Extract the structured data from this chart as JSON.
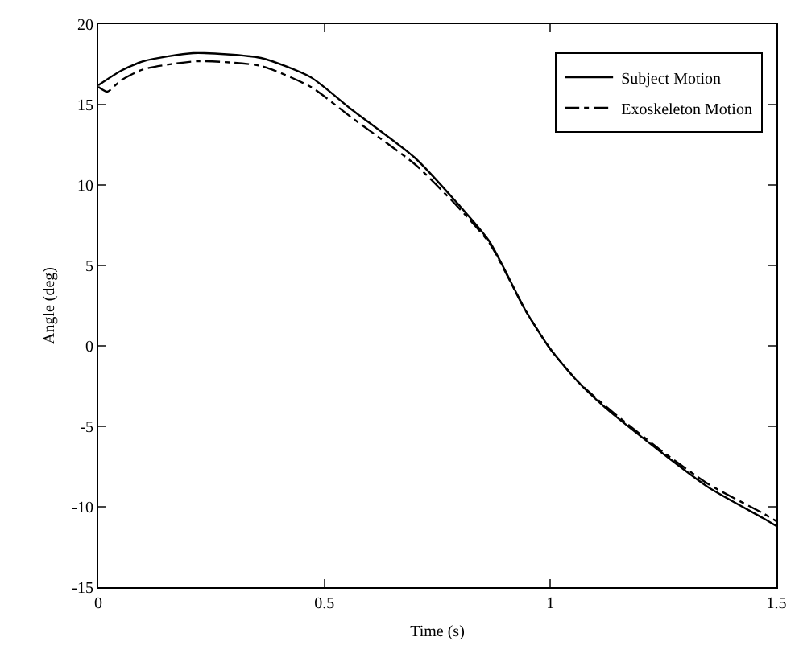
{
  "chart_data": {
    "type": "line",
    "xlabel": "Time (s)",
    "ylabel": "Angle (deg)",
    "xlim": [
      0,
      1.5
    ],
    "xticks": [
      0,
      0.5,
      1,
      1.5
    ],
    "ylim": [
      -15,
      20
    ],
    "yticks": [
      -15,
      -10,
      -5,
      0,
      5,
      10,
      15,
      20
    ],
    "grid": false,
    "legend": "top right",
    "marker": "none",
    "series": [
      {
        "name": "Subject Motion",
        "color": "#000000",
        "line_style": "solid",
        "x": [
          0,
          0.05,
          0.1,
          0.21,
          0.36,
          0.47,
          0.56,
          0.7,
          0.79,
          0.865,
          0.945,
          1.0,
          1.06,
          1.12,
          1.24,
          1.35,
          1.47,
          1.5
        ],
        "values": [
          16.2,
          17.1,
          17.7,
          18.2,
          17.9,
          16.7,
          14.7,
          11.7,
          9.0,
          6.5,
          2.2,
          -0.2,
          -2.2,
          -3.8,
          -6.5,
          -8.8,
          -10.7,
          -11.2
        ]
      },
      {
        "name": "Exoskeleton Motion",
        "color": "#000000",
        "line_style": "dashdot",
        "x": [
          0,
          0.02,
          0.05,
          0.1,
          0.22,
          0.36,
          0.47,
          0.56,
          0.7,
          0.79,
          0.865,
          0.945,
          1.0,
          1.06,
          1.12,
          1.24,
          1.35,
          1.47,
          1.5
        ],
        "values": [
          16.1,
          15.8,
          16.5,
          17.2,
          17.7,
          17.4,
          16.1,
          14.2,
          11.3,
          8.8,
          6.4,
          2.2,
          -0.2,
          -2.2,
          -3.7,
          -6.4,
          -8.6,
          -10.4,
          -10.9
        ]
      }
    ]
  }
}
